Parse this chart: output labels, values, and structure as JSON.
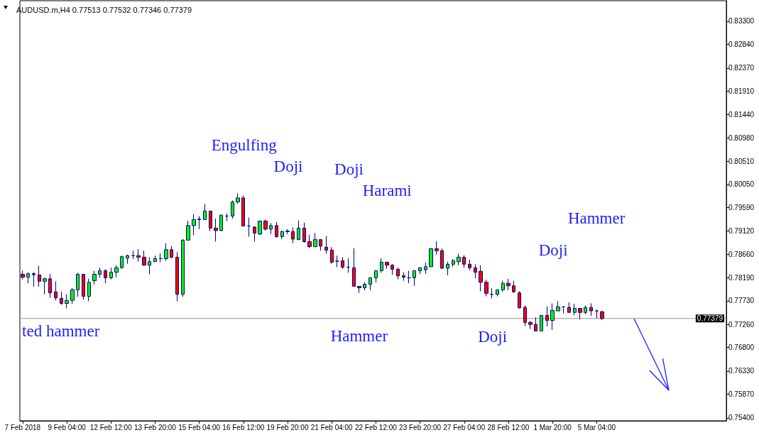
{
  "chart_data": {
    "type": "candlestick",
    "title": "AUDUSD.m,H4 0.77513 0.77532 0.77346 0.77379",
    "categories": [
      "7 Feb 2018",
      null,
      null,
      null,
      null,
      null,
      null,
      null,
      "9 Feb 04:00",
      null,
      null,
      null,
      null,
      null,
      null,
      null,
      "12 Feb 12:00",
      null,
      null,
      null,
      null,
      null,
      null,
      null,
      "13 Feb 20:00",
      null,
      null,
      null,
      null,
      null,
      null,
      null,
      "15 Feb 04:00",
      null,
      null,
      null,
      null,
      null,
      null,
      null,
      "16 Feb 12:00",
      null,
      null,
      null,
      null,
      null,
      null,
      null,
      "19 Feb 20:00",
      null,
      null,
      null,
      null,
      null,
      null,
      null,
      "21 Feb 04:00",
      null,
      null,
      null,
      null,
      null,
      null,
      null,
      "22 Feb 12:00",
      null,
      null,
      null,
      null,
      null,
      null,
      null,
      "23 Feb 20:00",
      null,
      null,
      null,
      null,
      null,
      null,
      null,
      "27 Feb 04:00",
      null,
      null,
      null,
      null,
      null,
      null,
      null,
      "28 Feb 12:00",
      null,
      null,
      null,
      null,
      null,
      null,
      null,
      "1 Mar 20:00",
      null,
      null,
      null,
      null,
      null,
      null,
      null,
      "5 Mar 04:00",
      null,
      null,
      null,
      null,
      null,
      null,
      null,
      null,
      null,
      null,
      null,
      null,
      null,
      null,
      null,
      null,
      null,
      null,
      null,
      null,
      null,
      null,
      null
    ],
    "ohlc": [
      [
        0.7826,
        0.7833,
        0.7816,
        0.782
      ],
      [
        0.782,
        0.783,
        0.7808,
        0.7827
      ],
      [
        0.7827,
        0.783,
        0.7801,
        0.7825
      ],
      [
        0.7825,
        0.7843,
        0.7801,
        0.7812
      ],
      [
        0.7812,
        0.7819,
        0.7786,
        0.7817
      ],
      [
        0.7817,
        0.7827,
        0.7779,
        0.7789
      ],
      [
        0.7791,
        0.7812,
        0.7774,
        0.7779
      ],
      [
        0.7778,
        0.7791,
        0.7765,
        0.7768
      ],
      [
        0.7768,
        0.7786,
        0.7758,
        0.7774
      ],
      [
        0.7774,
        0.7799,
        0.7767,
        0.7795
      ],
      [
        0.7795,
        0.7829,
        0.7781,
        0.7826
      ],
      [
        0.7826,
        0.7826,
        0.7775,
        0.7782
      ],
      [
        0.7782,
        0.7817,
        0.7772,
        0.781
      ],
      [
        0.7813,
        0.7833,
        0.7805,
        0.7826
      ],
      [
        0.7826,
        0.7839,
        0.7819,
        0.7833
      ],
      [
        0.7833,
        0.7836,
        0.7808,
        0.7819
      ],
      [
        0.7819,
        0.7839,
        0.7816,
        0.783
      ],
      [
        0.783,
        0.7844,
        0.782,
        0.7839
      ],
      [
        0.7839,
        0.7863,
        0.7837,
        0.7861
      ],
      [
        0.7858,
        0.7865,
        0.7847,
        0.7863
      ],
      [
        0.7863,
        0.7873,
        0.7856,
        0.7863
      ],
      [
        0.7863,
        0.7876,
        0.7851,
        0.786
      ],
      [
        0.786,
        0.7873,
        0.7843,
        0.7844
      ],
      [
        0.7844,
        0.786,
        0.7826,
        0.7851
      ],
      [
        0.7851,
        0.7863,
        0.7851,
        0.7857
      ],
      [
        0.7857,
        0.7868,
        0.785,
        0.7857
      ],
      [
        0.7857,
        0.7888,
        0.7853,
        0.7875
      ],
      [
        0.7875,
        0.7882,
        0.7858,
        0.786
      ],
      [
        0.786,
        0.787,
        0.7772,
        0.7786
      ],
      [
        0.7786,
        0.7896,
        0.7781,
        0.7894
      ],
      [
        0.7894,
        0.7933,
        0.7894,
        0.7923
      ],
      [
        0.7923,
        0.7946,
        0.7904,
        0.7935
      ],
      [
        0.7935,
        0.7942,
        0.7916,
        0.7936
      ],
      [
        0.7935,
        0.7966,
        0.7935,
        0.7952
      ],
      [
        0.7952,
        0.7952,
        0.7912,
        0.7918
      ],
      [
        0.7918,
        0.7937,
        0.7891,
        0.7913
      ],
      [
        0.7913,
        0.7944,
        0.7912,
        0.7944
      ],
      [
        0.7942,
        0.7947,
        0.7932,
        0.7942
      ],
      [
        0.7942,
        0.7973,
        0.7937,
        0.797
      ],
      [
        0.797,
        0.7987,
        0.7966,
        0.7978
      ],
      [
        0.7978,
        0.7983,
        0.7922,
        0.7922
      ],
      [
        0.7922,
        0.7939,
        0.7901,
        0.7922
      ],
      [
        0.792,
        0.7922,
        0.7891,
        0.7908
      ],
      [
        0.7906,
        0.7932,
        0.7905,
        0.7932
      ],
      [
        0.7932,
        0.7935,
        0.7913,
        0.7916
      ],
      [
        0.7916,
        0.7928,
        0.7906,
        0.7923
      ],
      [
        0.7923,
        0.793,
        0.7899,
        0.7901
      ],
      [
        0.7901,
        0.7913,
        0.7896,
        0.7911
      ],
      [
        0.7911,
        0.7916,
        0.7906,
        0.7912
      ],
      [
        0.7911,
        0.7919,
        0.7888,
        0.7896
      ],
      [
        0.7895,
        0.7933,
        0.7894,
        0.7918
      ],
      [
        0.7918,
        0.7929,
        0.7889,
        0.7891
      ],
      [
        0.7891,
        0.7905,
        0.7878,
        0.7881
      ],
      [
        0.7881,
        0.7908,
        0.788,
        0.7895
      ],
      [
        0.7895,
        0.7896,
        0.7873,
        0.7882
      ],
      [
        0.788,
        0.7902,
        0.7867,
        0.7874
      ],
      [
        0.7874,
        0.788,
        0.7847,
        0.785
      ],
      [
        0.7852,
        0.7863,
        0.784,
        0.7852
      ],
      [
        0.7853,
        0.786,
        0.7837,
        0.784
      ],
      [
        0.784,
        0.7858,
        0.7829,
        0.784
      ],
      [
        0.7839,
        0.7878,
        0.7802,
        0.7802
      ],
      [
        0.7802,
        0.7802,
        0.7789,
        0.7799
      ],
      [
        0.7799,
        0.781,
        0.7794,
        0.7806
      ],
      [
        0.7806,
        0.782,
        0.7794,
        0.7819
      ],
      [
        0.7819,
        0.7834,
        0.781,
        0.7833
      ],
      [
        0.7833,
        0.7858,
        0.7829,
        0.785
      ],
      [
        0.785,
        0.7851,
        0.7837,
        0.7844
      ],
      [
        0.7844,
        0.7846,
        0.7825,
        0.7836
      ],
      [
        0.7836,
        0.7839,
        0.7816,
        0.7823
      ],
      [
        0.7823,
        0.783,
        0.7813,
        0.782
      ],
      [
        0.7819,
        0.7833,
        0.7808,
        0.7819
      ],
      [
        0.7819,
        0.7834,
        0.7803,
        0.7833
      ],
      [
        0.7833,
        0.784,
        0.7826,
        0.7839
      ],
      [
        0.7835,
        0.7849,
        0.7827,
        0.7841
      ],
      [
        0.7841,
        0.7878,
        0.7841,
        0.7877
      ],
      [
        0.7877,
        0.7892,
        0.7865,
        0.7873
      ],
      [
        0.7873,
        0.7877,
        0.7837,
        0.7838
      ],
      [
        0.7838,
        0.7851,
        0.7824,
        0.7846
      ],
      [
        0.7846,
        0.7856,
        0.7841,
        0.7853
      ],
      [
        0.7851,
        0.7867,
        0.7844,
        0.786
      ],
      [
        0.786,
        0.7864,
        0.7839,
        0.7846
      ],
      [
        0.7846,
        0.7855,
        0.7834,
        0.7839
      ],
      [
        0.7839,
        0.7846,
        0.7818,
        0.783
      ],
      [
        0.7832,
        0.7844,
        0.7792,
        0.781
      ],
      [
        0.781,
        0.7815,
        0.7782,
        0.7788
      ],
      [
        0.7786,
        0.7798,
        0.7778,
        0.7786
      ],
      [
        0.7786,
        0.7796,
        0.7782,
        0.7795
      ],
      [
        0.7795,
        0.7813,
        0.7791,
        0.7808
      ],
      [
        0.7808,
        0.7817,
        0.7794,
        0.7803
      ],
      [
        0.7803,
        0.7813,
        0.7789,
        0.7791
      ],
      [
        0.7789,
        0.7792,
        0.7758,
        0.7759
      ],
      [
        0.776,
        0.7764,
        0.7723,
        0.773
      ],
      [
        0.773,
        0.7733,
        0.7717,
        0.7726
      ],
      [
        0.7726,
        0.774,
        0.7712,
        0.7713
      ],
      [
        0.7713,
        0.7744,
        0.7713,
        0.7744
      ],
      [
        0.7744,
        0.7762,
        0.7722,
        0.7734
      ],
      [
        0.7734,
        0.7768,
        0.7715,
        0.7754
      ],
      [
        0.7753,
        0.7772,
        0.7753,
        0.7761
      ],
      [
        0.7761,
        0.7762,
        0.7748,
        0.7761
      ],
      [
        0.776,
        0.777,
        0.775,
        0.775
      ],
      [
        0.775,
        0.7767,
        0.7744,
        0.7758
      ],
      [
        0.7758,
        0.7758,
        0.7736,
        0.775
      ],
      [
        0.775,
        0.7764,
        0.7747,
        0.776
      ],
      [
        0.776,
        0.7768,
        0.7743,
        0.7753
      ],
      [
        0.7753,
        0.7755,
        0.7738,
        0.7753
      ],
      [
        0.77513,
        0.77532,
        0.77346,
        0.77379
      ],
      null,
      null,
      null,
      null,
      null,
      null,
      null,
      null,
      null,
      null,
      null,
      null,
      null,
      null,
      null,
      null,
      null,
      null,
      null,
      null,
      null,
      null
    ],
    "colors": [
      "#ff0000",
      "#00ff00",
      "#ff0000",
      "#ff0000",
      "#00ff00",
      "#ff0000",
      "#ff0000",
      "#ff0000",
      "#00ff00",
      "#00ff00",
      "#00ff00",
      "#ff0000",
      "#00ff00",
      "#00ff00",
      "#00ff00",
      "#ff0000",
      "#00ff00",
      "#00ff00",
      "#00ff00",
      "#00ff00",
      "#000080",
      "#ff0000",
      "#ff0000",
      "#00ff00",
      "#00ff00",
      "#000080",
      "#00ff00",
      "#ff0000",
      "#ff0000",
      "#00ff00",
      "#00ff00",
      "#00ff00",
      "#00ff00",
      "#00ff00",
      "#ff0000",
      "#ff0000",
      "#00ff00",
      "#000080",
      "#00ff00",
      "#00ff00",
      "#ff0000",
      "#000080",
      "#ff0000",
      "#00ff00",
      "#ff0000",
      "#00ff00",
      "#ff0000",
      "#00ff00",
      "#000080",
      "#ff0000",
      "#00ff00",
      "#ff0000",
      "#ff0000",
      "#00ff00",
      "#ff0000",
      "#ff0000",
      "#ff0000",
      "#000080",
      "#ff0000",
      "#000080",
      "#ff0000",
      "#ff0000",
      "#00ff00",
      "#00ff00",
      "#00ff00",
      "#00ff00",
      "#ff0000",
      "#ff0000",
      "#ff0000",
      "#ff0000",
      "#000080",
      "#00ff00",
      "#00ff00",
      "#00ff00",
      "#00ff00",
      "#ff0000",
      "#ff0000",
      "#00ff00",
      "#00ff00",
      "#00ff00",
      "#ff0000",
      "#ff0000",
      "#ff0000",
      "#ff0000",
      "#ff0000",
      "#000080",
      "#00ff00",
      "#00ff00",
      "#ff0000",
      "#ff0000",
      "#ff0000",
      "#ff0000",
      "#ff0000",
      "#ff0000",
      "#00ff00",
      "#ff0000",
      "#00ff00",
      "#00ff00",
      "#000080",
      "#ff0000",
      "#00ff00",
      "#ff0000",
      "#00ff00",
      "#ff0000",
      "#000080",
      "#ff0000",
      null,
      null,
      null,
      null,
      null,
      null,
      null,
      null,
      null,
      null,
      null,
      null,
      null,
      null,
      null,
      null,
      null,
      null,
      null,
      null,
      null,
      null
    ],
    "color": "#000080",
    "ylim": [
      0.7534,
      0.8371
    ],
    "yticks": [
      {
        "value": 0.754,
        "label": "0.75400"
      },
      {
        "value": 0.7587,
        "label": "0.75870"
      },
      {
        "value": 0.7633,
        "label": "0.76330"
      },
      {
        "value": 0.768,
        "label": "0.76800"
      },
      {
        "value": 0.7726,
        "label": "0.77260"
      },
      {
        "value": 0.7773,
        "label": "0.77730"
      },
      {
        "value": 0.7819,
        "label": "0.78190"
      },
      {
        "value": 0.7866,
        "label": "0.78660"
      },
      {
        "value": 0.7912,
        "label": "0.79120"
      },
      {
        "value": 0.7959,
        "label": "0.79590"
      },
      {
        "value": 0.8005,
        "label": "0.80050"
      },
      {
        "value": 0.8051,
        "label": "0.80510"
      },
      {
        "value": 0.8098,
        "label": "0.80980"
      },
      {
        "value": 0.8144,
        "label": "0.81440"
      },
      {
        "value": 0.8191,
        "label": "0.81910"
      },
      {
        "value": 0.8237,
        "label": "0.82370"
      },
      {
        "value": 0.8284,
        "label": "0.82840"
      },
      {
        "value": 0.833,
        "label": "0.83300"
      }
    ],
    "ref_lines": [
      {
        "axis": "y",
        "value": 0.77379,
        "label": "0.77379",
        "color": "#909090"
      }
    ],
    "annotations": [
      "Engulfing",
      "Doji",
      "Doji",
      "Harami",
      "Hammer",
      "Doji",
      "ted hammer",
      "Hammer",
      "Doji"
    ]
  }
}
